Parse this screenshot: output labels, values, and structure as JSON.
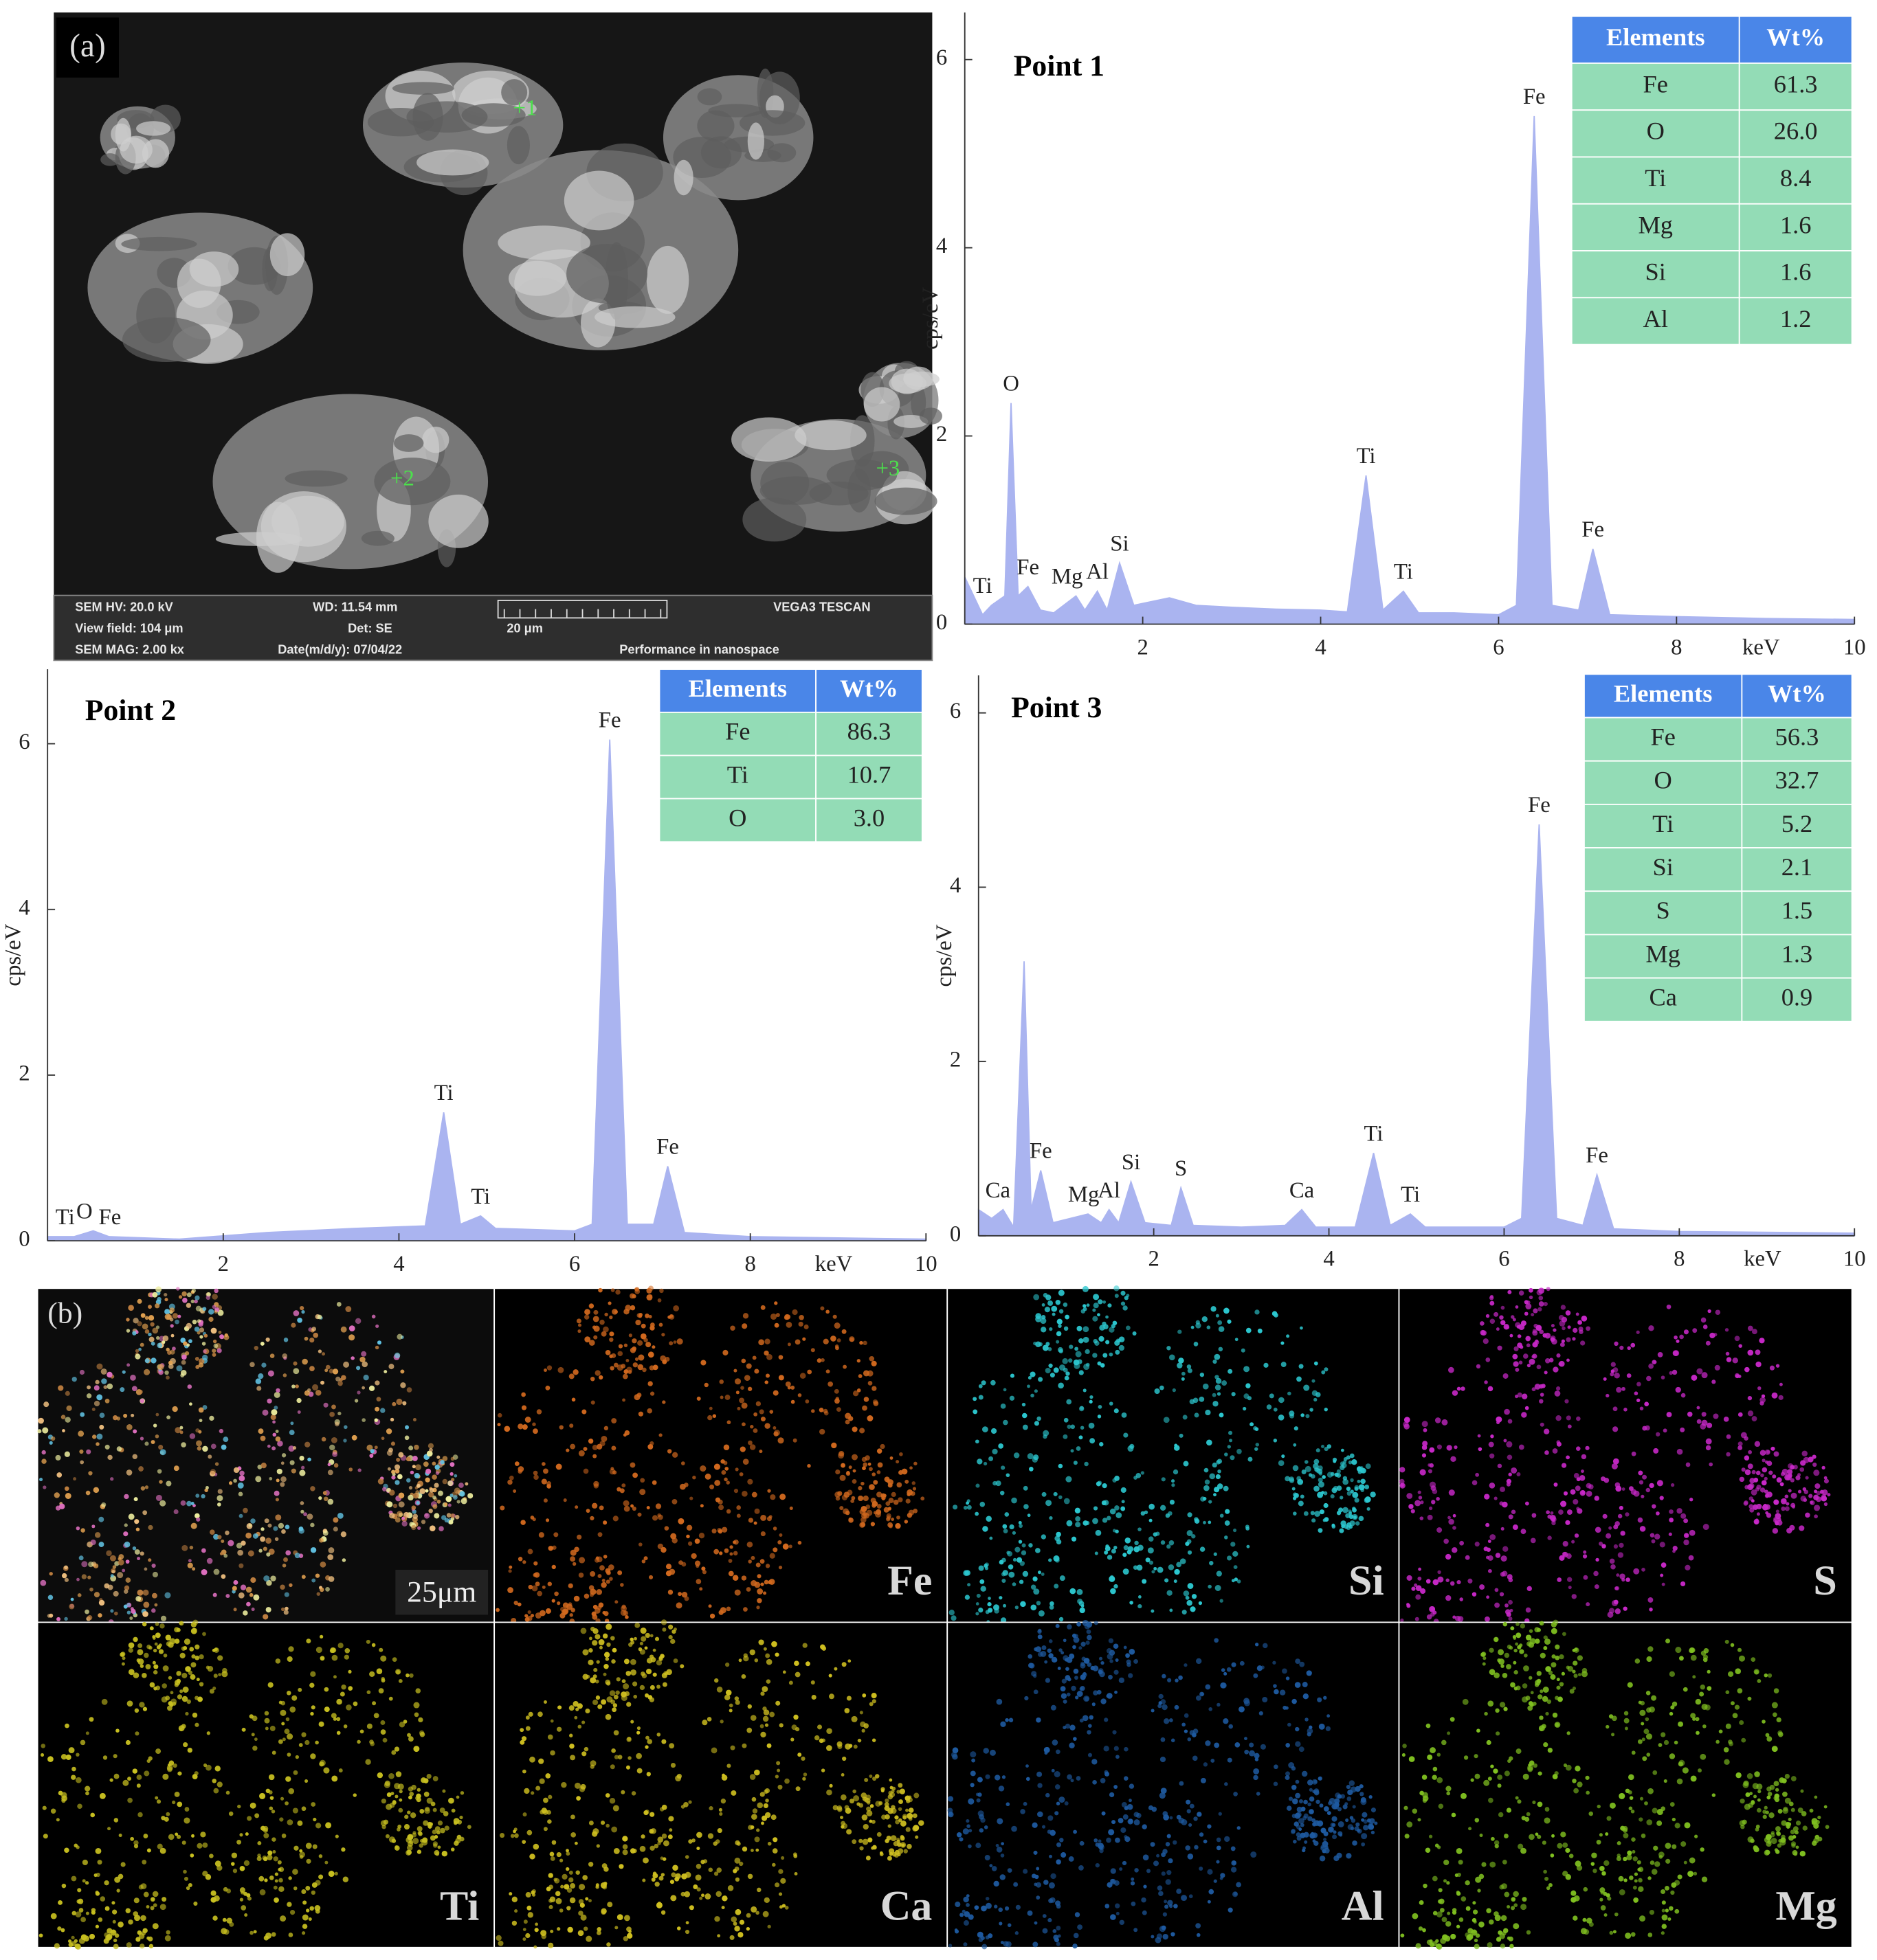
{
  "panel_a": {
    "label": "(a)",
    "points": [
      "+1",
      "+2",
      "+3"
    ],
    "info": [
      "SEM HV: 20.0 kV",
      "WD: 11.54 mm",
      "VEGA3 TESCAN",
      "View field: 104 μm",
      "Det: SE",
      "20 μm",
      "SEM MAG: 2.00 kx",
      "Date(m/d/y): 07/04/22",
      "Performance in nanospace"
    ]
  },
  "chart_data": [
    {
      "type": "area",
      "title": "Point 1",
      "x_label": "keV",
      "y_label": "cps/eV",
      "color": "#aab4f0",
      "xlim": [
        0,
        10
      ],
      "xticks": [
        2,
        4,
        6,
        8,
        10
      ],
      "ylim": [
        0,
        6.5
      ],
      "yticks": [
        0,
        2,
        4,
        6
      ],
      "x": [
        0,
        0.2,
        0.3,
        0.45,
        0.52,
        0.6,
        0.71,
        0.85,
        1.0,
        1.25,
        1.35,
        1.49,
        1.6,
        1.74,
        1.9,
        2.3,
        2.6,
        3.0,
        3.5,
        4.0,
        4.3,
        4.51,
        4.7,
        4.93,
        5.1,
        5.5,
        6.0,
        6.2,
        6.4,
        6.6,
        6.9,
        7.06,
        7.25,
        8.0,
        9.0,
        10.0
      ],
      "values": [
        0.5,
        0.1,
        0.2,
        0.3,
        2.35,
        0.3,
        0.4,
        0.15,
        0.12,
        0.3,
        0.15,
        0.35,
        0.15,
        0.65,
        0.2,
        0.28,
        0.2,
        0.18,
        0.16,
        0.15,
        0.13,
        1.58,
        0.15,
        0.35,
        0.12,
        0.12,
        0.1,
        0.2,
        5.4,
        0.2,
        0.15,
        0.8,
        0.1,
        0.08,
        0.06,
        0.05
      ],
      "annotations": [
        {
          "text": "Ti",
          "x": 0.2
        },
        {
          "text": "O",
          "x": 0.52
        },
        {
          "text": "Fe",
          "x": 0.71
        },
        {
          "text": "Mg",
          "x": 1.15
        },
        {
          "text": "Al",
          "x": 1.49
        },
        {
          "text": "Si",
          "x": 1.74
        },
        {
          "text": "Ti",
          "x": 4.51
        },
        {
          "text": "Ti",
          "x": 4.93
        },
        {
          "text": "Fe",
          "x": 6.4
        },
        {
          "text": "Fe",
          "x": 7.06
        }
      ],
      "table": {
        "columns": [
          "Elements",
          "Wt%"
        ],
        "rows": [
          [
            "Fe",
            "61.3"
          ],
          [
            "O",
            "26.0"
          ],
          [
            "Ti",
            "8.4"
          ],
          [
            "Mg",
            "1.6"
          ],
          [
            "Si",
            "1.6"
          ],
          [
            "Al",
            "1.2"
          ]
        ]
      }
    },
    {
      "type": "area",
      "title": "Point 2",
      "x_label": "keV",
      "y_label": "cps/eV",
      "color": "#aab4f0",
      "xlim": [
        0,
        10
      ],
      "xticks": [
        2,
        4,
        6,
        8,
        10
      ],
      "ylim": [
        0,
        6.9
      ],
      "yticks": [
        0,
        2,
        4,
        6
      ],
      "x": [
        0,
        0.3,
        0.52,
        0.7,
        1.5,
        2.5,
        3.5,
        4.3,
        4.51,
        4.7,
        4.93,
        5.1,
        6.0,
        6.2,
        6.4,
        6.6,
        6.9,
        7.06,
        7.25,
        8.0,
        10.0
      ],
      "values": [
        0.05,
        0.05,
        0.12,
        0.05,
        0.02,
        0.1,
        0.15,
        0.18,
        1.55,
        0.2,
        0.3,
        0.15,
        0.12,
        0.2,
        6.05,
        0.2,
        0.2,
        0.9,
        0.1,
        0.05,
        0.02
      ],
      "annotations": [
        {
          "text": "Ti",
          "x": 0.2
        },
        {
          "text": "O",
          "x": 0.42
        },
        {
          "text": "Fe",
          "x": 0.71
        },
        {
          "text": "Ti",
          "x": 4.51
        },
        {
          "text": "Ti",
          "x": 4.93
        },
        {
          "text": "Fe",
          "x": 6.4
        },
        {
          "text": "Fe",
          "x": 7.06
        }
      ],
      "table": {
        "columns": [
          "Elements",
          "Wt%"
        ],
        "rows": [
          [
            "Fe",
            "86.3"
          ],
          [
            "Ti",
            "10.7"
          ],
          [
            "O",
            "3.0"
          ]
        ]
      }
    },
    {
      "type": "area",
      "title": "Point 3",
      "x_label": "keV",
      "y_label": "cps/eV",
      "color": "#aab4f0",
      "xlim": [
        0,
        10
      ],
      "xticks": [
        2,
        4,
        6,
        8,
        10
      ],
      "ylim": [
        0,
        6.43
      ],
      "yticks": [
        0,
        2,
        4,
        6
      ],
      "x": [
        0,
        0.15,
        0.28,
        0.4,
        0.52,
        0.6,
        0.71,
        0.85,
        1.25,
        1.4,
        1.49,
        1.6,
        1.74,
        1.9,
        2.2,
        2.31,
        2.45,
        3.0,
        3.5,
        3.69,
        3.85,
        4.3,
        4.51,
        4.7,
        4.93,
        5.1,
        6.0,
        6.2,
        6.4,
        6.6,
        6.9,
        7.06,
        7.25,
        8.0,
        10.0
      ],
      "values": [
        0.3,
        0.2,
        0.3,
        0.1,
        3.15,
        0.3,
        0.75,
        0.15,
        0.25,
        0.15,
        0.3,
        0.15,
        0.62,
        0.15,
        0.12,
        0.55,
        0.12,
        0.1,
        0.12,
        0.3,
        0.1,
        0.1,
        0.95,
        0.12,
        0.25,
        0.1,
        0.1,
        0.2,
        4.72,
        0.2,
        0.12,
        0.7,
        0.08,
        0.05,
        0.03
      ],
      "annotations": [
        {
          "text": "Ca",
          "x": 0.22
        },
        {
          "text": "Fe",
          "x": 0.71
        },
        {
          "text": "Mg",
          "x": 1.2
        },
        {
          "text": "Al",
          "x": 1.49
        },
        {
          "text": "Si",
          "x": 1.74
        },
        {
          "text": "S",
          "x": 2.31
        },
        {
          "text": "Ca",
          "x": 3.69
        },
        {
          "text": "Ti",
          "x": 4.51
        },
        {
          "text": "Ti",
          "x": 4.93
        },
        {
          "text": "Fe",
          "x": 6.4
        },
        {
          "text": "Fe",
          "x": 7.06
        }
      ],
      "table": {
        "columns": [
          "Elements",
          "Wt%"
        ],
        "rows": [
          [
            "Fe",
            "56.3"
          ],
          [
            "O",
            "32.7"
          ],
          [
            "Ti",
            "5.2"
          ],
          [
            "Si",
            "2.1"
          ],
          [
            "S",
            "1.5"
          ],
          [
            "Mg",
            "1.3"
          ],
          [
            "Ca",
            "0.9"
          ]
        ]
      }
    }
  ],
  "panel_b": {
    "label": "(b)",
    "scale": "25μm",
    "maps": [
      {
        "element": "Fe",
        "color": "#d2691e"
      },
      {
        "element": "Si",
        "color": "#2cc8d0"
      },
      {
        "element": "S",
        "color": "#c828c8"
      },
      {
        "element": "Ti",
        "color": "#c8c020"
      },
      {
        "element": "Ca",
        "color": "#d0c020"
      },
      {
        "element": "Al",
        "color": "#1e5aa0"
      },
      {
        "element": "Mg",
        "color": "#80c020"
      }
    ]
  }
}
